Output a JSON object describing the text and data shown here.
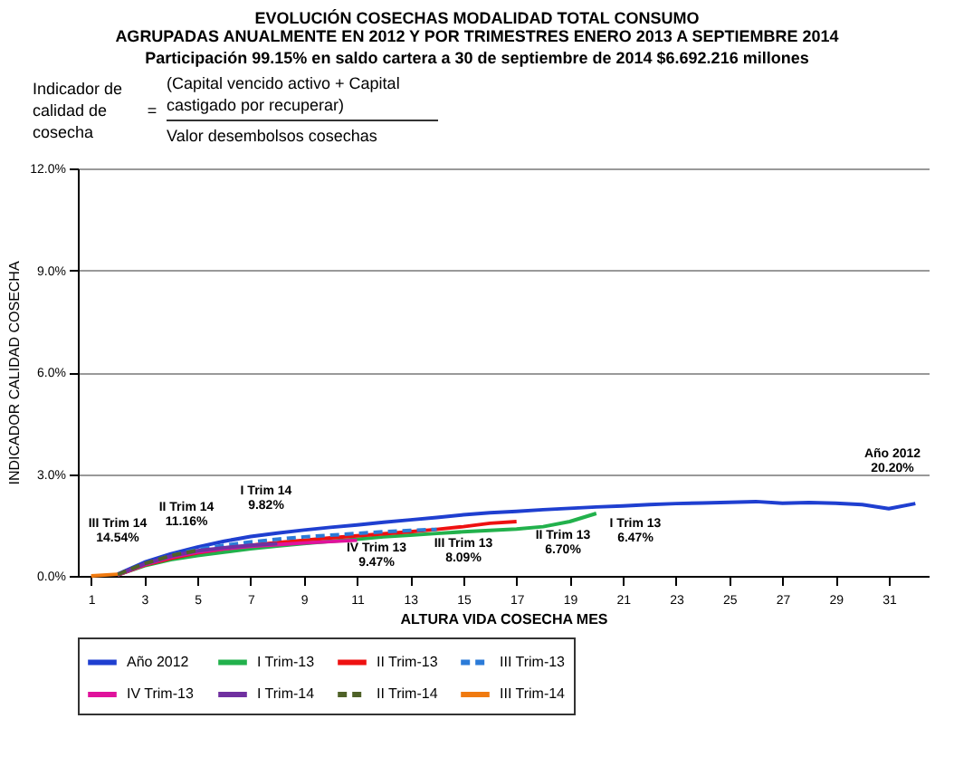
{
  "chart_data": {
    "type": "line",
    "title": "EVOLUCIÓN COSECHAS MODALIDAD TOTAL CONSUMO\nAGRUPADAS ANUALMENTE EN 2012 Y POR TRIMESTRES ENERO 2013 A SEPTIEMBRE 2014",
    "subtitle": "Participación 99.15% en saldo cartera a 30 de septiembre de 2014 $6.692.216 millones",
    "xlabel": "ALTURA VIDA COSECHA MES",
    "ylabel": "INDICADOR CALIDAD COSECHA",
    "annotations": [
      "Indicador de calidad de cosecha",
      "=",
      "(Capital vencido activo + Capital castigado por recuperar)",
      "Valor desembolsos cosechas",
      "III Trim 14\n14.54%",
      "II Trim 14\n11.16%",
      "I Trim 14\n9.82%",
      "IV Trim 13\n9.47%",
      "III Trim 13\n8.09%",
      "II Trim 13\n6.70%",
      "I Trim 13\n6.47%",
      "Año 2012\n20.20%"
    ],
    "series": [
      {
        "name": "Año 2012",
        "color": "#1f3fd0",
        "x": [
          2,
          3,
          4,
          5,
          6,
          7,
          8,
          9,
          10,
          11,
          12,
          13,
          14,
          15,
          16,
          17,
          18,
          19,
          20,
          21,
          22,
          23,
          24,
          25,
          26,
          27,
          28,
          29,
          30,
          31,
          32
        ],
        "values": [
          0.05,
          0.4,
          0.65,
          0.85,
          1.02,
          1.16,
          1.26,
          1.35,
          1.43,
          1.5,
          1.58,
          1.65,
          1.72,
          1.8,
          1.86,
          1.9,
          1.95,
          1.99,
          2.03,
          2.06,
          2.1,
          2.13,
          2.15,
          2.17,
          2.19,
          2.14,
          2.16,
          2.14,
          2.1,
          1.98,
          2.13
        ]
      },
      {
        "name": "I Trim-13",
        "color": "#22b14c",
        "x": [
          2,
          3,
          4,
          5,
          6,
          7,
          8,
          9,
          10,
          11,
          12,
          13,
          14,
          15,
          16,
          17,
          18,
          19,
          20
        ],
        "values": [
          0.03,
          0.3,
          0.48,
          0.6,
          0.7,
          0.8,
          0.88,
          0.95,
          1.02,
          1.08,
          1.15,
          1.2,
          1.25,
          1.3,
          1.34,
          1.38,
          1.45,
          1.6,
          1.84
        ]
      },
      {
        "name": "II Trim-13",
        "color": "#ee1111",
        "x": [
          2,
          3,
          4,
          5,
          6,
          7,
          8,
          9,
          10,
          11,
          12,
          13,
          14,
          15,
          16,
          17
        ],
        "values": [
          0.03,
          0.32,
          0.52,
          0.68,
          0.8,
          0.9,
          0.98,
          1.05,
          1.12,
          1.18,
          1.24,
          1.3,
          1.37,
          1.45,
          1.55,
          1.6
        ]
      },
      {
        "name": "III Trim-13",
        "color": "#2b7bd8",
        "line_style": "dashed",
        "x": [
          2,
          3,
          4,
          5,
          6,
          7,
          8,
          9,
          10,
          11,
          12,
          13,
          14
        ],
        "values": [
          0.04,
          0.35,
          0.6,
          0.78,
          0.9,
          1.0,
          1.08,
          1.15,
          1.2,
          1.25,
          1.3,
          1.34,
          1.37
        ]
      },
      {
        "name": "IV Trim-13",
        "color": "#e0129c",
        "x": [
          2,
          3,
          4,
          5,
          6,
          7,
          8,
          9,
          10,
          11
        ],
        "values": [
          0.03,
          0.33,
          0.55,
          0.7,
          0.8,
          0.87,
          0.92,
          0.97,
          1.01,
          1.05
        ]
      },
      {
        "name": "I Trim-14",
        "color": "#7030a0",
        "x": [
          2,
          3,
          4,
          5,
          6,
          7,
          8
        ],
        "values": [
          0.04,
          0.35,
          0.58,
          0.74,
          0.83,
          0.9,
          0.95
        ]
      },
      {
        "name": "II Trim-14",
        "color": "#4f6228",
        "line_style": "dashed",
        "x": [
          2,
          3,
          4,
          5
        ],
        "values": [
          0.04,
          0.36,
          0.6,
          0.75
        ]
      },
      {
        "name": "III Trim-14",
        "color": "#f07a10",
        "x": [
          1,
          2
        ],
        "values": [
          0,
          0.05
        ]
      }
    ],
    "xlim": [
      0.5,
      32.5
    ],
    "xticks": [
      1,
      3,
      5,
      7,
      9,
      11,
      13,
      15,
      17,
      19,
      21,
      23,
      25,
      27,
      29,
      31
    ],
    "ylim": [
      0,
      12
    ],
    "yticks": [
      {
        "value": 0,
        "label": "0.0%"
      },
      {
        "value": 3,
        "label": "3.0%"
      },
      {
        "value": 6,
        "label": "6.0%"
      },
      {
        "value": 9,
        "label": "9.0%"
      },
      {
        "value": 12,
        "label": "12.0%"
      }
    ],
    "grid": "y",
    "legend": "bottom"
  }
}
